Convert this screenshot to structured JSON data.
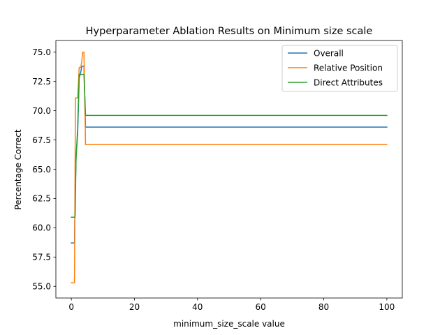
{
  "chart_data": {
    "type": "line",
    "title": "Hyperparameter Ablation Results on Minimum size scale",
    "xlabel": "minimum_size_scale value",
    "ylabel": "Percentage Correct",
    "xlim": [
      -4.9,
      104.9
    ],
    "ylim": [
      54.0,
      76.0
    ],
    "xticks": [
      0,
      20,
      40,
      60,
      80,
      100
    ],
    "yticks": [
      55.0,
      57.5,
      60.0,
      62.5,
      65.0,
      67.5,
      70.0,
      72.5,
      75.0
    ],
    "grid": false,
    "legend": "top-right",
    "series": [
      {
        "name": "Overall",
        "color": "#1f77b4",
        "x": [
          0,
          1,
          1.2,
          1.5,
          2,
          2.5,
          3,
          3.3,
          3.6,
          4,
          4.5,
          100
        ],
        "y": [
          58.7,
          58.7,
          62.5,
          66.0,
          68.0,
          72.8,
          73.3,
          73.8,
          73.8,
          73.8,
          68.6,
          68.6
        ]
      },
      {
        "name": "Relative Position",
        "color": "#ff7f0e",
        "x": [
          0,
          1,
          1.3,
          1.5,
          2,
          2.5,
          3,
          3.3,
          3.6,
          4,
          4.5,
          100
        ],
        "y": [
          55.3,
          55.3,
          71.1,
          71.1,
          71.1,
          73.7,
          73.7,
          74.2,
          75.0,
          75.0,
          67.1,
          67.1
        ]
      },
      {
        "name": "Direct Attributes",
        "color": "#2ca02c",
        "x": [
          0,
          1,
          1.2,
          1.5,
          2,
          2.5,
          3,
          3.3,
          3.6,
          4,
          4.5,
          100
        ],
        "y": [
          60.9,
          60.9,
          61.0,
          66.0,
          68.5,
          73.1,
          73.1,
          73.1,
          73.1,
          73.1,
          69.6,
          69.6
        ]
      }
    ]
  }
}
